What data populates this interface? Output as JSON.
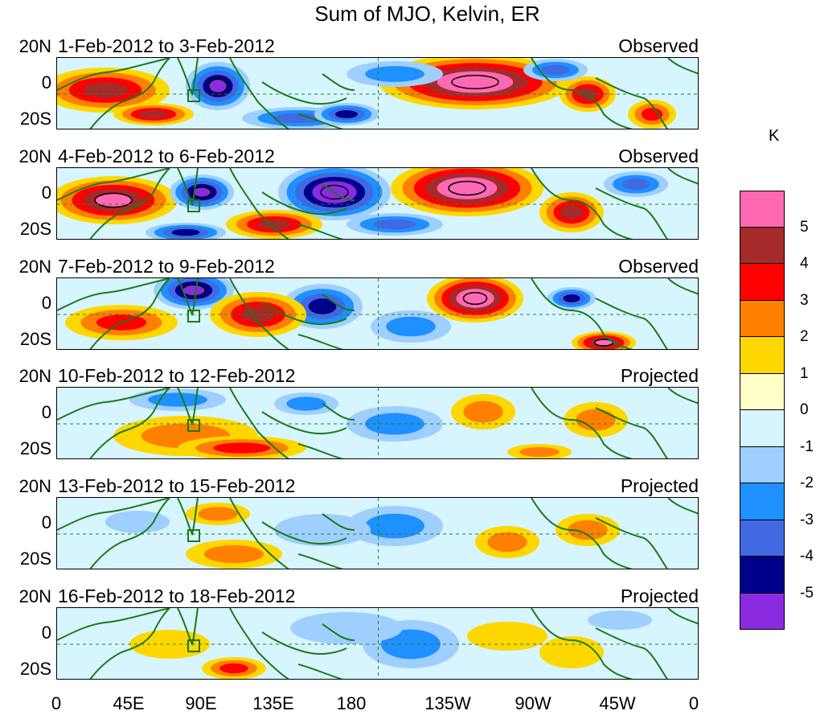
{
  "title": "Sum of MJO, Kelvin, ER",
  "colorbar": {
    "unit": "K",
    "labels": [
      "5",
      "4",
      "3",
      "2",
      "1",
      "0",
      "-1",
      "-2",
      "-3",
      "-4",
      "-5"
    ],
    "colors": [
      "#ff69b4",
      "#a52a2a",
      "#ff0000",
      "#ff7f00",
      "#ffd700",
      "#ffffc8",
      "#d6f5ff",
      "#9fcfff",
      "#1e90ff",
      "#4169e1",
      "#00008b",
      "#8a2be2"
    ]
  },
  "axes": {
    "y_labels": [
      "20N",
      "0",
      "20S"
    ],
    "x_labels": [
      "0",
      "45E",
      "90E",
      "135E",
      "180",
      "135W",
      "90W",
      "45W",
      "0"
    ]
  },
  "panels": [
    {
      "date_range": "1-Feb-2012 to 3-Feb-2012",
      "type": "Observed",
      "intensity": 1.0,
      "shift": 0
    },
    {
      "date_range": "4-Feb-2012 to 6-Feb-2012",
      "type": "Observed",
      "intensity": 1.0,
      "shift": 12
    },
    {
      "date_range": "7-Feb-2012 to 9-Feb-2012",
      "type": "Observed",
      "intensity": 0.95,
      "shift": 24
    },
    {
      "date_range": "10-Feb-2012 to 12-Feb-2012",
      "type": "Projected",
      "intensity": 0.55,
      "shift": 36
    },
    {
      "date_range": "13-Feb-2012 to 15-Feb-2012",
      "type": "Projected",
      "intensity": 0.5,
      "shift": 48
    },
    {
      "date_range": "16-Feb-2012 to 18-Feb-2012",
      "type": "Projected",
      "intensity": 0.5,
      "shift": 60
    }
  ]
}
